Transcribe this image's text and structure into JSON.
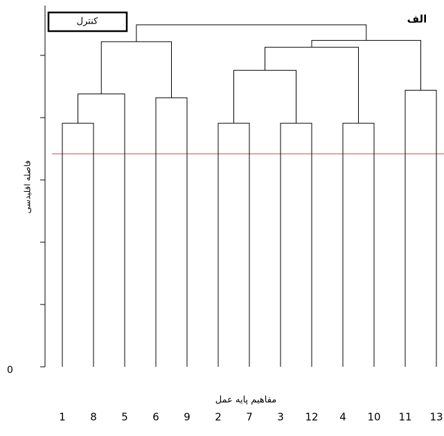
{
  "chart_data": {
    "type": "dendrogram",
    "title": "الف",
    "legend": "کنترل",
    "ylabel": "فاصله اقلیدسی",
    "xlabel": "مفاهیم پایه عمل",
    "ylim": [
      0,
      5.8
    ],
    "yticks": [
      0,
      {
        "value": 1,
        "label": null
      },
      {
        "value": 2,
        "label": null
      },
      {
        "value": 3,
        "label": null
      },
      {
        "value": 4,
        "label": null
      },
      {
        "value": 5,
        "label": null
      }
    ],
    "cut_height": 3.42,
    "cut_color": "#c0504d",
    "color": "#000000",
    "tree": {
      "height": 5.49,
      "children": [
        {
          "height": 5.22,
          "children": [
            {
              "height": 4.38,
              "children": [
                {
                  "height": 3.91,
                  "children": [
                    {
                      "label": "1"
                    },
                    {
                      "label": "8"
                    }
                  ]
                },
                {
                  "label": "5"
                }
              ]
            },
            {
              "height": 4.32,
              "children": [
                {
                  "label": "6"
                },
                {
                  "label": "9"
                }
              ]
            }
          ]
        },
        {
          "height": 5.24,
          "children": [
            {
              "height": 5.13,
              "children": [
                {
                  "height": 4.76,
                  "children": [
                    {
                      "height": 3.91,
                      "children": [
                        {
                          "label": "2"
                        },
                        {
                          "label": "7"
                        }
                      ]
                    },
                    {
                      "height": 3.91,
                      "children": [
                        {
                          "label": "3"
                        },
                        {
                          "label": "12"
                        }
                      ]
                    }
                  ]
                },
                {
                  "height": 3.91,
                  "children": [
                    {
                      "label": "4"
                    },
                    {
                      "label": "10"
                    }
                  ]
                }
              ]
            },
            {
              "height": 4.44,
              "children": [
                {
                  "label": "11"
                },
                {
                  "label": "13"
                }
              ]
            }
          ]
        }
      ]
    }
  }
}
